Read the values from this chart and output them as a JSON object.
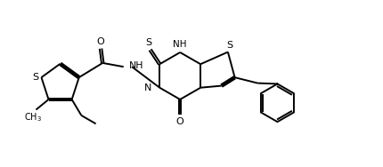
{
  "background": "#ffffff",
  "bond_color": "#000000",
  "text_color": "#000000",
  "line_width": 1.4,
  "figsize": [
    4.3,
    1.88
  ],
  "dpi": 100,
  "xlim": [
    0.0,
    10.0
  ],
  "ylim": [
    0.0,
    4.4
  ]
}
